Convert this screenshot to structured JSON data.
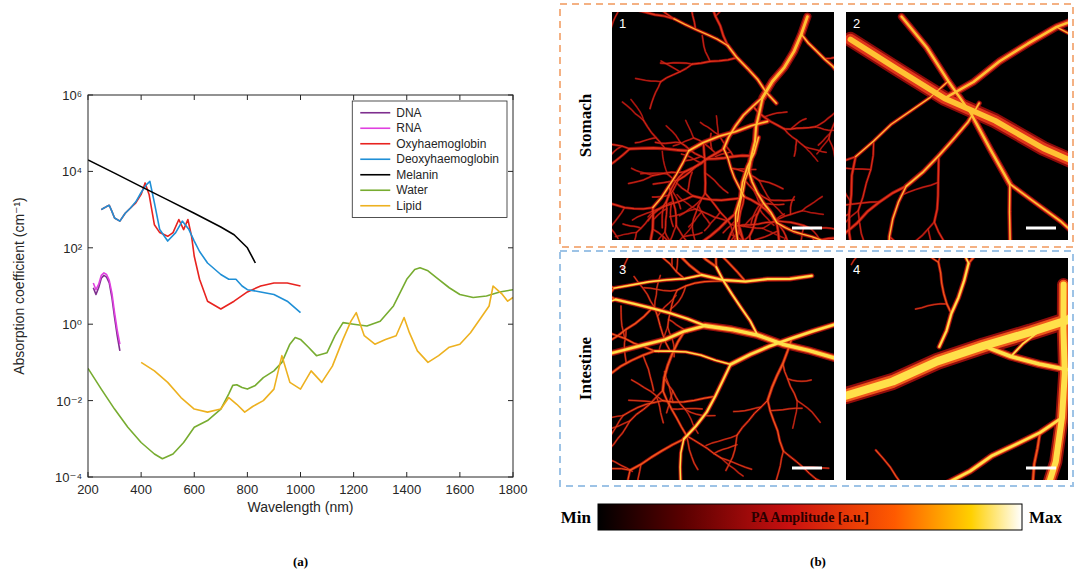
{
  "chart_data": {
    "type": "line",
    "x_label": "Wavelength (nm)",
    "y_label": "Absorption coefficient (cm⁻¹)",
    "log": "y",
    "legend": "upper right",
    "grid": false,
    "xlim": [
      200,
      1800
    ],
    "xticks": [
      200,
      400,
      600,
      800,
      1000,
      1200,
      1400,
      1600,
      1800
    ],
    "ylim": [
      0.0001,
      1000000
    ],
    "yticks": [
      {
        "value": 0.0001,
        "label": "10⁻⁴"
      },
      {
        "value": 0.01,
        "label": "10⁻²"
      },
      {
        "value": 1,
        "label": "10⁰"
      },
      {
        "value": 100,
        "label": "10²"
      },
      {
        "value": 10000,
        "label": "10⁴"
      },
      {
        "value": 1000000,
        "label": "10⁶"
      }
    ],
    "series": [
      {
        "name": "DNA",
        "color": "#7e2f8e",
        "x": [
          220,
          230,
          240,
          250,
          260,
          270,
          280,
          290,
          300,
          310,
          320
        ],
        "values": [
          9,
          6,
          9,
          16,
          19,
          17,
          12,
          5,
          1.5,
          0.5,
          0.2
        ]
      },
      {
        "name": "RNA",
        "color": "#e040e0",
        "x": [
          220,
          230,
          240,
          250,
          260,
          270,
          280,
          290,
          300,
          310,
          320
        ],
        "values": [
          12,
          8,
          11,
          19,
          22,
          20,
          14,
          6.5,
          2,
          0.7,
          0.3
        ]
      },
      {
        "name": "Oxyhaemoglobin",
        "color": "#e8231f",
        "x": [
          250,
          260,
          270,
          280,
          290,
          300,
          320,
          340,
          360,
          380,
          400,
          415,
          430,
          450,
          470,
          500,
          520,
          542,
          560,
          576,
          590,
          600,
          620,
          650,
          700,
          750,
          800,
          850,
          900,
          950,
          1000
        ],
        "values": [
          1000,
          1100,
          1200,
          1300,
          900,
          600,
          500,
          800,
          1100,
          1500,
          2500,
          5000,
          2500,
          400,
          250,
          200,
          250,
          550,
          300,
          550,
          200,
          60,
          15,
          4,
          2.5,
          4,
          7,
          10,
          12,
          12,
          10
        ]
      },
      {
        "name": "Deoxyhaemoglobin",
        "color": "#1f8fd6",
        "x": [
          250,
          260,
          270,
          280,
          290,
          300,
          320,
          340,
          360,
          380,
          400,
          420,
          433,
          450,
          470,
          500,
          530,
          555,
          580,
          600,
          620,
          650,
          700,
          730,
          757,
          780,
          800,
          850,
          900,
          950,
          1000
        ],
        "values": [
          1000,
          1100,
          1200,
          1300,
          900,
          600,
          500,
          800,
          1100,
          1600,
          2800,
          4500,
          5500,
          1500,
          300,
          150,
          250,
          500,
          300,
          150,
          80,
          40,
          20,
          15,
          15,
          10,
          8,
          7,
          6,
          4,
          2
        ]
      },
      {
        "name": "Melanin",
        "color": "#000000",
        "x": [
          200,
          300,
          400,
          500,
          600,
          700,
          750,
          800,
          830
        ],
        "values": [
          20000,
          9000,
          4000,
          1800,
          800,
          350,
          220,
          100,
          40
        ]
      },
      {
        "name": "Water",
        "color": "#77ac30",
        "x": [
          200,
          250,
          300,
          350,
          400,
          450,
          480,
          520,
          560,
          600,
          650,
          700,
          730,
          745,
          760,
          780,
          800,
          830,
          860,
          900,
          930,
          960,
          980,
          1000,
          1030,
          1060,
          1100,
          1130,
          1160,
          1200,
          1250,
          1300,
          1350,
          1400,
          1430,
          1450,
          1480,
          1520,
          1560,
          1600,
          1650,
          1700,
          1750,
          1800
        ],
        "values": [
          0.07,
          0.02,
          0.006,
          0.002,
          0.0008,
          0.0004,
          0.0003,
          0.0004,
          0.0008,
          0.002,
          0.003,
          0.006,
          0.015,
          0.025,
          0.026,
          0.022,
          0.02,
          0.025,
          0.04,
          0.06,
          0.1,
          0.3,
          0.45,
          0.4,
          0.25,
          0.15,
          0.18,
          0.5,
          1.1,
          1,
          0.9,
          1.2,
          3,
          15,
          27,
          30,
          25,
          15,
          9,
          6,
          5,
          5.5,
          7,
          8
        ]
      },
      {
        "name": "Lipid",
        "color": "#edb120",
        "x": [
          400,
          450,
          500,
          550,
          600,
          650,
          700,
          730,
          760,
          790,
          820,
          860,
          900,
          930,
          960,
          1000,
          1040,
          1080,
          1120,
          1160,
          1190,
          1210,
          1240,
          1280,
          1320,
          1360,
          1390,
          1410,
          1440,
          1480,
          1520,
          1560,
          1600,
          1640,
          1680,
          1710,
          1725,
          1740,
          1760,
          1780,
          1800
        ],
        "values": [
          0.1,
          0.06,
          0.03,
          0.012,
          0.006,
          0.005,
          0.006,
          0.012,
          0.008,
          0.005,
          0.007,
          0.01,
          0.02,
          0.15,
          0.03,
          0.02,
          0.06,
          0.03,
          0.08,
          0.4,
          1.2,
          2,
          0.5,
          0.3,
          0.4,
          0.5,
          1.5,
          0.6,
          0.2,
          0.1,
          0.15,
          0.25,
          0.3,
          0.6,
          1.5,
          3,
          10,
          8,
          6,
          4,
          5
        ]
      }
    ]
  },
  "figure": {
    "panel_labels": [
      "(a)",
      "(b)"
    ],
    "rows": [
      {
        "label": "Stomach",
        "images": [
          "1",
          "2"
        ]
      },
      {
        "label": "Intestine",
        "images": [
          "3",
          "4"
        ]
      }
    ],
    "colorbar": {
      "label": "PA Amplitude [a.u.]",
      "min_label": "Min",
      "max_label": "Max"
    }
  }
}
